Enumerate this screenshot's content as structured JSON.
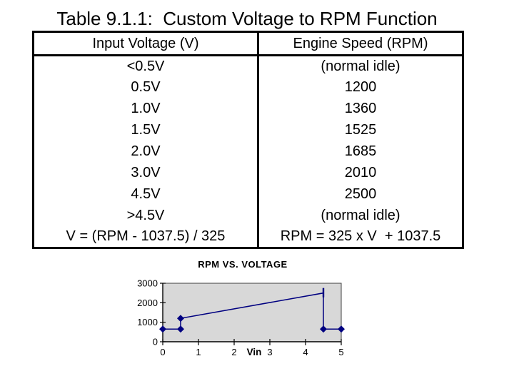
{
  "page": {
    "title": "Table 9.1.1:  Custom Voltage to RPM Function"
  },
  "table": {
    "columns": [
      "Input Voltage (V)",
      "Engine Speed (RPM)"
    ],
    "rows": [
      [
        "<0.5V",
        "(normal idle)"
      ],
      [
        "0.5V",
        "1200"
      ],
      [
        "1.0V",
        "1360"
      ],
      [
        "1.5V",
        "1525"
      ],
      [
        "2.0V",
        "1685"
      ],
      [
        "3.0V",
        "2010"
      ],
      [
        "4.5V",
        "2500"
      ],
      [
        ">4.5V",
        "(normal idle)"
      ],
      [
        "V = (RPM - 1037.5) / 325",
        "RPM = 325 x V  + 1037.5"
      ]
    ]
  },
  "chart_data": {
    "type": "line",
    "title": "RPM VS. VOLTAGE",
    "xlabel": "Vin",
    "ylabel": "",
    "x": [
      0,
      0.5,
      0.5,
      4.5,
      4.5,
      5
    ],
    "y": [
      650,
      650,
      1200,
      2500,
      650,
      650
    ],
    "points": [
      {
        "x": 0,
        "y": 650,
        "marker": "diamond"
      },
      {
        "x": 0.5,
        "y": 650,
        "marker": "diamond"
      },
      {
        "x": 0.5,
        "y": 1200,
        "marker": "diamond"
      },
      {
        "x": 4.5,
        "y": 2500,
        "marker": "dash"
      },
      {
        "x": 4.5,
        "y": 650,
        "marker": "diamond"
      },
      {
        "x": 5,
        "y": 650,
        "marker": "diamond"
      }
    ],
    "xticks": [
      0,
      1,
      2,
      3,
      4,
      5
    ],
    "yticks": [
      0,
      1000,
      2000,
      3000
    ],
    "xlim": [
      0,
      5
    ],
    "ylim": [
      0,
      3000
    ],
    "grid": false,
    "legend": "none",
    "line_color": "#000080",
    "marker_color": "#000080",
    "plot_bg": "#D8D8D8",
    "plot_border": "#404040",
    "axis_color": "#000000",
    "text_color": "#000000"
  }
}
